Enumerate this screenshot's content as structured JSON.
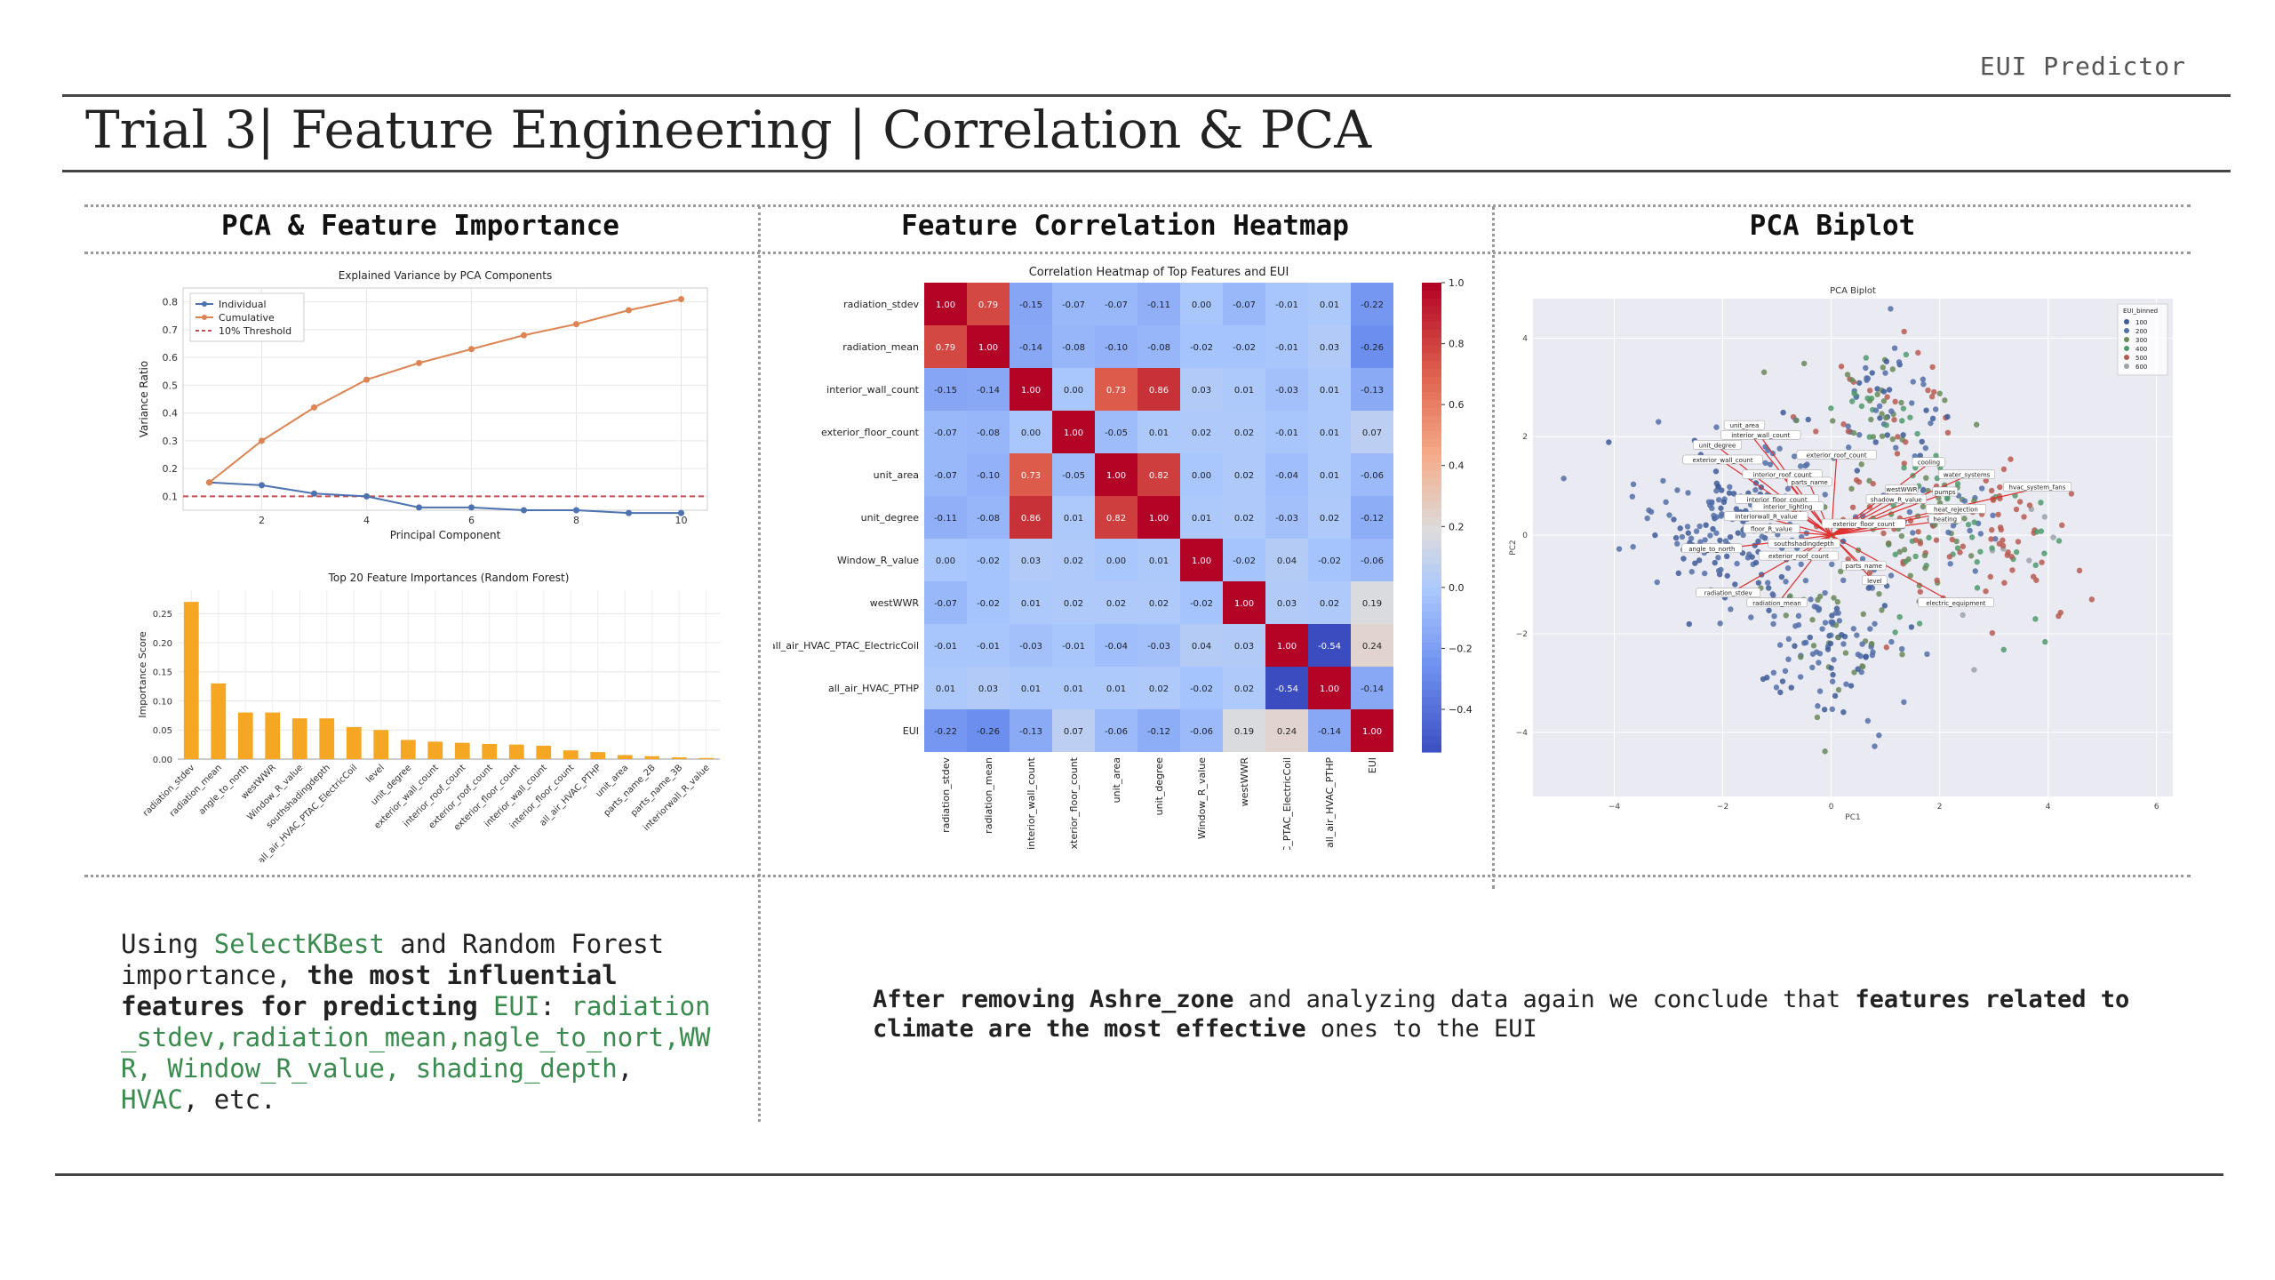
{
  "brand": "EUI Predictor",
  "title": "Trial 3| Feature Engineering | Correlation & PCA",
  "panels": {
    "left_title": "PCA & Feature Importance",
    "middle_title": "Feature Correlation Heatmap",
    "right_title": "PCA Biplot"
  },
  "caption_left": {
    "p1": "Using ",
    "p2": "SelectKBest",
    "p3": " and Random Forest importance, ",
    "p4": "the most influential features for predicting ",
    "p5": "EUI",
    "p6": ":",
    "p7": "radiation_stdev,radiation_mean,nagle_to_nort,WWR, Window_R_value, shading_depth",
    "p8": ", ",
    "p9": "HVAC",
    "p10": ", etc."
  },
  "caption_right": {
    "p1": "After removing Ashre_zone",
    "p2": " and analyzing data again we conclude that ",
    "p3": "features related to climate are the most effective",
    "p4": " ones to the EUI"
  },
  "chart_data": [
    {
      "type": "line",
      "title": "Explained Variance by PCA Components",
      "xlabel": "Principal Component",
      "ylabel": "Variance Ratio",
      "x": [
        1,
        2,
        3,
        4,
        5,
        6,
        7,
        8,
        9,
        10
      ],
      "xticks": [
        2,
        4,
        6,
        8,
        10
      ],
      "yticks": [
        0.1,
        0.2,
        0.3,
        0.4,
        0.5,
        0.6,
        0.7,
        0.8
      ],
      "xlim": [
        0.5,
        10.5
      ],
      "ylim": [
        0.05,
        0.85
      ],
      "legend_position": "top-left",
      "series": [
        {
          "name": "Individual",
          "color": "#4c72b0",
          "values": [
            0.15,
            0.14,
            0.11,
            0.1,
            0.06,
            0.06,
            0.05,
            0.05,
            0.04,
            0.04
          ]
        },
        {
          "name": "Cumulative",
          "color": "#dd8452",
          "values": [
            0.15,
            0.3,
            0.42,
            0.52,
            0.58,
            0.63,
            0.68,
            0.72,
            0.77,
            0.81
          ]
        }
      ],
      "threshold": {
        "name": "10% Threshold",
        "value": 0.1,
        "color": "#c44e52"
      },
      "grid": true
    },
    {
      "type": "bar",
      "title": "Top 20 Feature Importances (Random Forest)",
      "ylabel": "Importance Score",
      "color": "#f5a623",
      "categories": [
        "radiation_stdev",
        "radiation_mean",
        "angle_to_north",
        "westWWR",
        "Window_R_value",
        "southshadingdepth",
        "all_air_HVAC_PTAC_ElectricCoil",
        "level",
        "unit_degree",
        "exterior_wall_count",
        "interior_roof_count",
        "exterior_roof_count",
        "exterior_floor_count",
        "interior_wall_count",
        "interior_floor_count",
        "all_air_HVAC_PTHP",
        "unit_area",
        "parts_name_2B",
        "parts_name_3B",
        "interiorwall_R_value"
      ],
      "values": [
        0.27,
        0.13,
        0.08,
        0.08,
        0.07,
        0.07,
        0.055,
        0.05,
        0.033,
        0.03,
        0.028,
        0.026,
        0.025,
        0.023,
        0.015,
        0.012,
        0.007,
        0.005,
        0.003,
        0.002
      ],
      "yticks": [
        0.0,
        0.05,
        0.1,
        0.15,
        0.2,
        0.25
      ],
      "ylim": [
        0,
        0.29
      ],
      "grid": true
    },
    {
      "type": "heatmap",
      "title": "Correlation Heatmap of Top Features and EUI",
      "labels": [
        "radiation_stdev",
        "radiation_mean",
        "interior_wall_count",
        "exterior_floor_count",
        "unit_area",
        "unit_degree",
        "Window_R_value",
        "westWWR",
        "all_air_HVAC_PTAC_ElectricCoil",
        "all_air_HVAC_PTHP",
        "EUI"
      ],
      "matrix": [
        [
          1.0,
          0.79,
          -0.15,
          -0.07,
          -0.07,
          -0.11,
          -0.0,
          -0.07,
          -0.01,
          0.01,
          -0.22
        ],
        [
          0.79,
          1.0,
          -0.14,
          -0.08,
          -0.1,
          -0.08,
          -0.02,
          -0.02,
          -0.01,
          0.03,
          -0.26
        ],
        [
          -0.15,
          -0.14,
          1.0,
          -0.0,
          0.73,
          0.86,
          0.03,
          0.01,
          -0.03,
          0.01,
          -0.13
        ],
        [
          -0.07,
          -0.08,
          -0.0,
          1.0,
          -0.05,
          0.01,
          0.02,
          0.02,
          -0.01,
          0.01,
          0.07
        ],
        [
          -0.07,
          -0.1,
          0.73,
          -0.05,
          1.0,
          0.82,
          -0.0,
          0.02,
          -0.04,
          0.01,
          -0.06
        ],
        [
          -0.11,
          -0.08,
          0.86,
          0.01,
          0.82,
          1.0,
          0.01,
          0.02,
          -0.03,
          0.02,
          -0.12
        ],
        [
          -0.0,
          -0.02,
          0.03,
          0.02,
          -0.0,
          0.01,
          1.0,
          -0.02,
          0.04,
          -0.02,
          -0.06
        ],
        [
          -0.07,
          -0.02,
          0.01,
          0.02,
          0.02,
          0.02,
          -0.02,
          1.0,
          0.03,
          0.02,
          0.19
        ],
        [
          -0.01,
          -0.01,
          -0.03,
          -0.01,
          -0.04,
          -0.03,
          0.04,
          0.03,
          1.0,
          -0.54,
          0.24
        ],
        [
          0.01,
          0.03,
          0.01,
          0.01,
          0.01,
          0.02,
          -0.02,
          0.02,
          -0.54,
          1.0,
          -0.14
        ],
        [
          -0.22,
          -0.26,
          -0.13,
          0.07,
          -0.06,
          -0.12,
          -0.06,
          0.19,
          0.24,
          -0.14,
          1.0
        ]
      ],
      "colorbar_ticks": [
        1.0,
        0.8,
        0.6,
        0.4,
        0.2,
        0.0,
        -0.2,
        -0.4
      ],
      "colorbar_range": [
        -0.54,
        1.0
      ],
      "colormap": "coolwarm"
    },
    {
      "type": "scatter",
      "title": "PCA Biplot",
      "xlabel": "PC1",
      "ylabel": "PC2",
      "xticks": [
        -4,
        -2,
        0,
        2,
        4,
        6
      ],
      "yticks": [
        -4,
        -2,
        0,
        2,
        4
      ],
      "xlim": [
        -5.5,
        6.3
      ],
      "ylim": [
        -5.3,
        4.8
      ],
      "legend_title": "EUI_binned",
      "legend_position": "top-right",
      "legend_entries": [
        "100",
        "200",
        "300",
        "400",
        "500",
        "600"
      ],
      "legend_colors": [
        "#3d5a99",
        "#5470a8",
        "#6a8a5a",
        "#4f9a6c",
        "#b85a50",
        "#9aa3a8"
      ],
      "loadings": [
        {
          "name": "unit_area",
          "x": -1.6,
          "y": 2.2
        },
        {
          "name": "interior_wall_count",
          "x": -1.3,
          "y": 2.0
        },
        {
          "name": "unit_degree",
          "x": -2.1,
          "y": 1.8
        },
        {
          "name": "exterior_wall_count",
          "x": -2.0,
          "y": 1.5
        },
        {
          "name": "exterior_roof_count",
          "x": 0.1,
          "y": 1.6
        },
        {
          "name": "interior_roof_count",
          "x": -0.9,
          "y": 1.2
        },
        {
          "name": "parts_name",
          "x": -0.4,
          "y": 1.05
        },
        {
          "name": "interior_floor_count",
          "x": -1.0,
          "y": 0.7
        },
        {
          "name": "interior_lighting",
          "x": -0.8,
          "y": 0.55
        },
        {
          "name": "interiorwall_R_value",
          "x": -1.2,
          "y": 0.35
        },
        {
          "name": "floor_R_value",
          "x": -1.1,
          "y": 0.1
        },
        {
          "name": "southshadingdepth",
          "x": -0.5,
          "y": -0.2
        },
        {
          "name": "exterior_roof_count",
          "x": -0.6,
          "y": -0.45
        },
        {
          "name": "angle_to_north",
          "x": -2.2,
          "y": -0.3
        },
        {
          "name": "radiation_stdev",
          "x": -1.9,
          "y": -1.2
        },
        {
          "name": "radiation_mean",
          "x": -1.0,
          "y": -1.4
        },
        {
          "name": "parts_name",
          "x": 0.6,
          "y": -0.65
        },
        {
          "name": "level",
          "x": 0.8,
          "y": -0.95
        },
        {
          "name": "electric_equipment",
          "x": 2.3,
          "y": -1.4
        },
        {
          "name": "westWWR",
          "x": 1.3,
          "y": 0.9
        },
        {
          "name": "shadow_R_value",
          "x": 1.2,
          "y": 0.7
        },
        {
          "name": "exterior_floor_count",
          "x": 0.6,
          "y": 0.2
        },
        {
          "name": "pumps",
          "x": 2.1,
          "y": 0.85
        },
        {
          "name": "heat_rejection",
          "x": 2.3,
          "y": 0.5
        },
        {
          "name": "heating",
          "x": 2.1,
          "y": 0.3
        },
        {
          "name": "water_systems",
          "x": 2.5,
          "y": 1.2
        },
        {
          "name": "cooling",
          "x": 1.8,
          "y": 1.45
        },
        {
          "name": "hvac_system_fans",
          "x": 3.8,
          "y": 0.95
        }
      ]
    }
  ]
}
